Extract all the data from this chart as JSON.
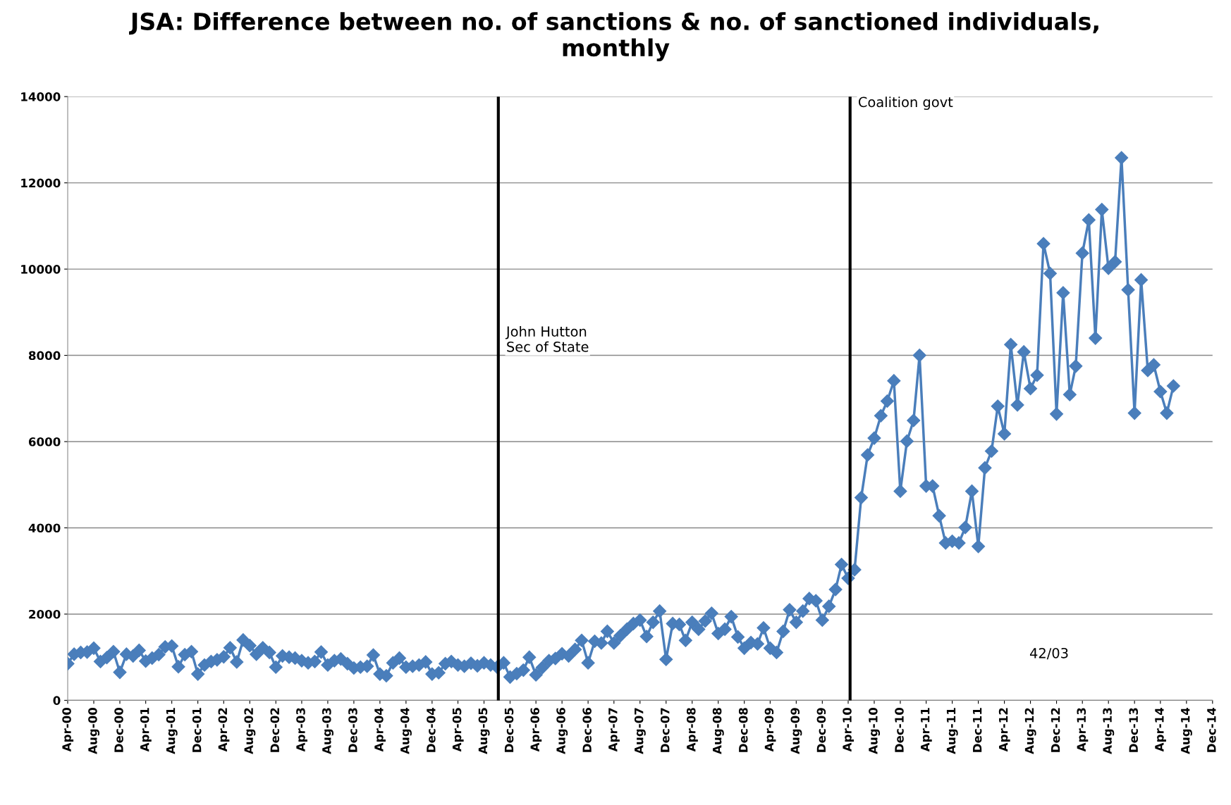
{
  "chart_data": {
    "type": "line",
    "title": "JSA: Difference between no. of sanctions & no. of sanctioned individuals,\nmonthly",
    "x": [
      "2000-04",
      "2000-05",
      "2000-06",
      "2000-07",
      "2000-08",
      "2000-09",
      "2000-10",
      "2000-11",
      "2000-12",
      "2001-01",
      "2001-02",
      "2001-03",
      "2001-04",
      "2001-05",
      "2001-06",
      "2001-07",
      "2001-08",
      "2001-09",
      "2001-10",
      "2001-11",
      "2001-12",
      "2002-01",
      "2002-02",
      "2002-03",
      "2002-04",
      "2002-05",
      "2002-06",
      "2002-07",
      "2002-08",
      "2002-09",
      "2002-10",
      "2002-11",
      "2002-12",
      "2003-01",
      "2003-02",
      "2003-03",
      "2003-04",
      "2003-05",
      "2003-06",
      "2003-07",
      "2003-08",
      "2003-09",
      "2003-10",
      "2003-11",
      "2003-12",
      "2004-01",
      "2004-02",
      "2004-03",
      "2004-04",
      "2004-05",
      "2004-06",
      "2004-07",
      "2004-08",
      "2004-09",
      "2004-10",
      "2004-11",
      "2004-12",
      "2005-01",
      "2005-02",
      "2005-03",
      "2005-04",
      "2005-05",
      "2005-06",
      "2005-07",
      "2005-08",
      "2005-09",
      "2005-10",
      "2005-11",
      "2005-12",
      "2006-01",
      "2006-02",
      "2006-03",
      "2006-04",
      "2006-05",
      "2006-06",
      "2006-07",
      "2006-08",
      "2006-09",
      "2006-10",
      "2006-11",
      "2006-12",
      "2007-01",
      "2007-02",
      "2007-03",
      "2007-04",
      "2007-05",
      "2007-06",
      "2007-07",
      "2007-08",
      "2007-09",
      "2007-10",
      "2007-11",
      "2007-12",
      "2008-01",
      "2008-02",
      "2008-03",
      "2008-04",
      "2008-05",
      "2008-06",
      "2008-07",
      "2008-08",
      "2008-09",
      "2008-10",
      "2008-11",
      "2008-12",
      "2009-01",
      "2009-02",
      "2009-03",
      "2009-04",
      "2009-05",
      "2009-06",
      "2009-07",
      "2009-08",
      "2009-09",
      "2009-10",
      "2009-11",
      "2009-12",
      "2010-01",
      "2010-02",
      "2010-03",
      "2010-04",
      "2010-05",
      "2010-06",
      "2010-07",
      "2010-08",
      "2010-09",
      "2010-10",
      "2010-11",
      "2010-12",
      "2011-01",
      "2011-02",
      "2011-03",
      "2011-04",
      "2011-05",
      "2011-06",
      "2011-07",
      "2011-08",
      "2011-09",
      "2011-10",
      "2011-11",
      "2011-12",
      "2012-01",
      "2012-02",
      "2012-03",
      "2012-04",
      "2012-05",
      "2012-06",
      "2012-07",
      "2012-08",
      "2012-09",
      "2012-10",
      "2012-11",
      "2012-12",
      "2013-01",
      "2013-02",
      "2013-03",
      "2013-04",
      "2013-05",
      "2013-06",
      "2013-07",
      "2013-08",
      "2013-09",
      "2013-10",
      "2013-11",
      "2013-12",
      "2014-01",
      "2014-02",
      "2014-03",
      "2014-04",
      "2014-05",
      "2014-06"
    ],
    "series": [
      {
        "color": "#4a7ebb",
        "values": [
          850,
          1070,
          1110,
          1120,
          1210,
          900,
          990,
          1130,
          650,
          1070,
          1030,
          1160,
          910,
          980,
          1060,
          1240,
          1260,
          780,
          1060,
          1130,
          610,
          820,
          900,
          940,
          1010,
          1220,
          890,
          1400,
          1270,
          1070,
          1220,
          1110,
          770,
          1030,
          1000,
          980,
          920,
          870,
          900,
          1120,
          820,
          920,
          960,
          850,
          750,
          770,
          790,
          1050,
          610,
          570,
          870,
          980,
          770,
          790,
          820,
          890,
          610,
          640,
          850,
          900,
          820,
          790,
          860,
          800,
          870,
          820,
          770,
          870,
          540,
          620,
          700,
          1000,
          590,
          760,
          920,
          970,
          1080,
          1030,
          1180,
          1390,
          870,
          1370,
          1330,
          1600,
          1330,
          1500,
          1650,
          1780,
          1860,
          1480,
          1810,
          2070,
          950,
          1780,
          1760,
          1390,
          1810,
          1650,
          1840,
          2020,
          1550,
          1650,
          1940,
          1470,
          1210,
          1340,
          1310,
          1680,
          1210,
          1110,
          1600,
          2100,
          1810,
          2070,
          2360,
          2310,
          1860,
          2180,
          2570,
          3150,
          2830,
          3030,
          4700,
          5690,
          6080,
          6600,
          6940,
          7410,
          4850,
          6010,
          6490,
          8000,
          4970,
          4970,
          4280,
          3650,
          3690,
          3650,
          4010,
          4850,
          3570,
          5390,
          5780,
          6820,
          6180,
          8250,
          6850,
          8080,
          7230,
          7540,
          10590,
          9900,
          6640,
          9450,
          7090,
          7750,
          10370,
          11140,
          8400,
          11380,
          10020,
          10170,
          12580,
          9520,
          6660,
          9750,
          7650,
          7780,
          7160,
          6660,
          7290
        ]
      }
    ],
    "marker": "diamond",
    "line_style": "solid",
    "xlim": [
      "2000-04",
      "2014-12"
    ],
    "xticks": [
      {
        "value": "2000-04",
        "label": "Apr-00"
      },
      {
        "value": "2000-08",
        "label": "Aug-00"
      },
      {
        "value": "2000-12",
        "label": "Dec-00"
      },
      {
        "value": "2001-04",
        "label": "Apr-01"
      },
      {
        "value": "2001-08",
        "label": "Aug-01"
      },
      {
        "value": "2001-12",
        "label": "Dec-01"
      },
      {
        "value": "2002-04",
        "label": "Apr-02"
      },
      {
        "value": "2002-08",
        "label": "Aug-02"
      },
      {
        "value": "2002-12",
        "label": "Dec-02"
      },
      {
        "value": "2003-04",
        "label": "Apr-03"
      },
      {
        "value": "2003-08",
        "label": "Aug-03"
      },
      {
        "value": "2003-12",
        "label": "Dec-03"
      },
      {
        "value": "2004-04",
        "label": "Apr-04"
      },
      {
        "value": "2004-08",
        "label": "Aug-04"
      },
      {
        "value": "2004-12",
        "label": "Dec-04"
      },
      {
        "value": "2005-04",
        "label": "Apr-05"
      },
      {
        "value": "2005-08",
        "label": "Aug-05"
      },
      {
        "value": "2005-12",
        "label": "Dec-05"
      },
      {
        "value": "2006-04",
        "label": "Apr-06"
      },
      {
        "value": "2006-08",
        "label": "Aug-06"
      },
      {
        "value": "2006-12",
        "label": "Dec-06"
      },
      {
        "value": "2007-04",
        "label": "Apr-07"
      },
      {
        "value": "2007-08",
        "label": "Aug-07"
      },
      {
        "value": "2007-12",
        "label": "Dec-07"
      },
      {
        "value": "2008-04",
        "label": "Apr-08"
      },
      {
        "value": "2008-08",
        "label": "Aug-08"
      },
      {
        "value": "2008-12",
        "label": "Dec-08"
      },
      {
        "value": "2009-04",
        "label": "Apr-09"
      },
      {
        "value": "2009-08",
        "label": "Aug-09"
      },
      {
        "value": "2009-12",
        "label": "Dec-09"
      },
      {
        "value": "2010-04",
        "label": "Apr-10"
      },
      {
        "value": "2010-08",
        "label": "Aug-10"
      },
      {
        "value": "2010-12",
        "label": "Dec-10"
      },
      {
        "value": "2011-04",
        "label": "Apr-11"
      },
      {
        "value": "2011-08",
        "label": "Aug-11"
      },
      {
        "value": "2011-12",
        "label": "Dec-11"
      },
      {
        "value": "2012-04",
        "label": "Apr-12"
      },
      {
        "value": "2012-08",
        "label": "Aug-12"
      },
      {
        "value": "2012-12",
        "label": "Dec-12"
      },
      {
        "value": "2013-04",
        "label": "Apr-13"
      },
      {
        "value": "2013-08",
        "label": "Aug-13"
      },
      {
        "value": "2013-12",
        "label": "Dec-13"
      },
      {
        "value": "2014-04",
        "label": "Apr-14"
      },
      {
        "value": "2014-08",
        "label": "Aug-14"
      },
      {
        "value": "2014-12",
        "label": "Dec-14"
      }
    ],
    "ylim": [
      0,
      14000
    ],
    "yticks": [
      0,
      2000,
      4000,
      6000,
      8000,
      10000,
      12000,
      14000
    ],
    "grid": "y",
    "ref_lines": [
      {
        "axis": "x",
        "value": "2005-10-07",
        "label": "John Hutton\nSec of State",
        "color": "#000000"
      },
      {
        "axis": "x",
        "value": "2010-04-10",
        "label": "Coalition govt",
        "color": "#000000"
      }
    ],
    "annotations": [
      "42/03"
    ]
  }
}
